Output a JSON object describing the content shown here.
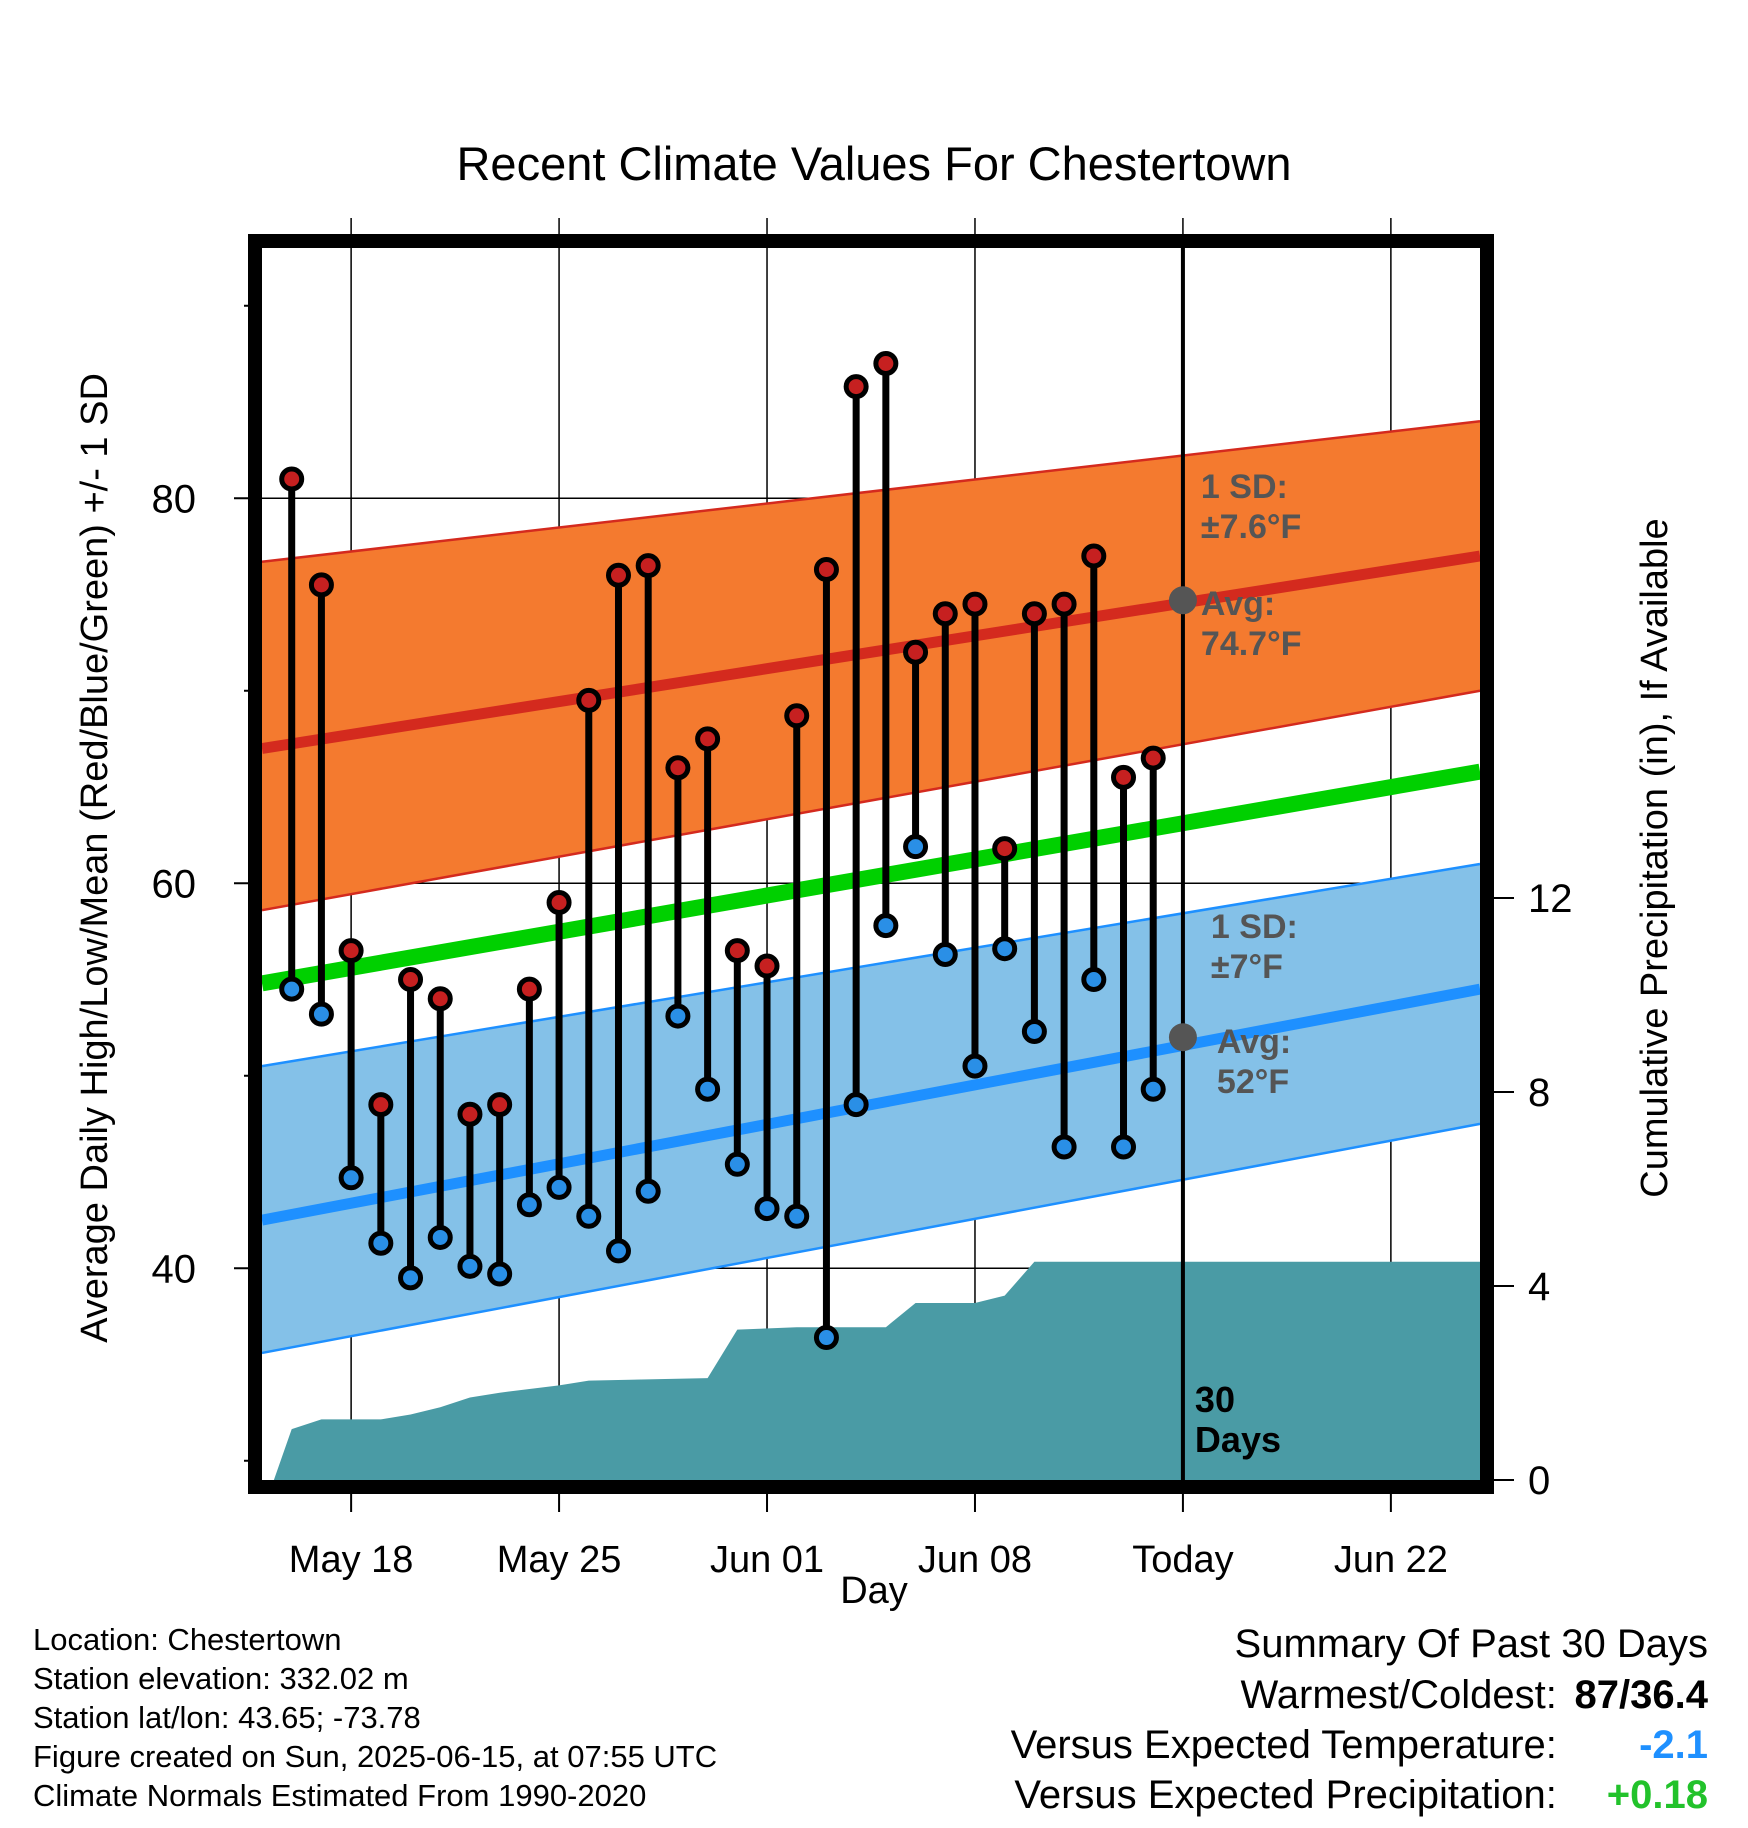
{
  "chart_data": {
    "type": "line",
    "title": "Recent Climate Values For Chestertown",
    "xlabel": "Day",
    "ylabel": "Average Daily High/Low/Mean (Red/Blue/Green) +/- 1 SD",
    "y2label": "Cumulative Precipitation (in), If Available",
    "x_tick_labels": [
      "May 18",
      "May 25",
      "Jun 01",
      "Jun 08",
      "Today",
      "Jun 22"
    ],
    "x_tick_days": [
      3,
      10,
      17,
      24,
      31,
      38
    ],
    "x_range_days": [
      0,
      41
    ],
    "today_day": 31,
    "y_ticks": [
      40,
      60,
      80
    ],
    "ylim": [
      29,
      93
    ],
    "y2_ticks": [
      0,
      4,
      8,
      12
    ],
    "y2lim": [
      0,
      25.4
    ],
    "normals": {
      "high_mean": {
        "start": 67.0,
        "end": 77.0
      },
      "high_sd_upper": {
        "start": 76.7,
        "end": 84.0
      },
      "high_sd_lower": {
        "start": 58.6,
        "end": 70.0
      },
      "low_mean": {
        "start": 42.5,
        "end": 54.5
      },
      "low_sd_upper": {
        "start": 50.5,
        "end": 61.0
      },
      "low_sd_lower": {
        "start": 35.6,
        "end": 47.5
      },
      "mean": {
        "start": 54.8,
        "end": 65.8
      }
    },
    "daily": {
      "days": [
        1,
        2,
        3,
        4,
        5,
        6,
        7,
        8,
        9,
        10,
        11,
        12,
        13,
        14,
        15,
        16,
        17,
        18,
        19,
        20,
        21,
        22,
        23,
        24,
        25,
        26,
        27,
        28,
        29,
        30
      ],
      "high": [
        81,
        75.5,
        56.5,
        48.5,
        55,
        54,
        48,
        48.5,
        54.5,
        59,
        69.5,
        76,
        76.5,
        66,
        67.5,
        56.5,
        55.7,
        68.7,
        76.3,
        85.8,
        87,
        72,
        74,
        74.5,
        61.8,
        74,
        74.5,
        77,
        65.5,
        66.5
      ],
      "low": [
        54.5,
        53.2,
        44.7,
        41.3,
        39.5,
        41.6,
        40.1,
        39.7,
        43.3,
        44.2,
        42.7,
        40.9,
        44,
        53.1,
        49.3,
        45.4,
        43.1,
        42.7,
        36.4,
        48.5,
        57.8,
        61.9,
        56.3,
        50.5,
        56.6,
        52.3,
        46.3,
        55,
        46.3,
        49.3
      ]
    },
    "precip_cumulative": [
      [
        0.4,
        0.0
      ],
      [
        1.0,
        1.05
      ],
      [
        2.0,
        1.25
      ],
      [
        4.0,
        1.25
      ],
      [
        5.0,
        1.35
      ],
      [
        6.0,
        1.5
      ],
      [
        7.0,
        1.7
      ],
      [
        8.0,
        1.8
      ],
      [
        10.0,
        1.95
      ],
      [
        11.0,
        2.05
      ],
      [
        15.0,
        2.1
      ],
      [
        16.0,
        3.1
      ],
      [
        18.0,
        3.15
      ],
      [
        21.0,
        3.15
      ],
      [
        22.0,
        3.65
      ],
      [
        24.0,
        3.65
      ],
      [
        25.0,
        3.8
      ],
      [
        26.0,
        4.5
      ],
      [
        41.0,
        4.5
      ]
    ],
    "annotations": {
      "high_sd": [
        "1 SD:",
        "±7.6°F"
      ],
      "high_avg": [
        "Avg:",
        "74.7°F"
      ],
      "low_sd": [
        "1 SD:",
        "±7°F"
      ],
      "low_avg": [
        "Avg:",
        "52°F"
      ],
      "today_high_avg": 74.7,
      "today_low_avg": 52.0,
      "days_label": [
        "30",
        "Days"
      ]
    },
    "colors": {
      "high_band": "#f47a2f",
      "high_line": "#d42a1e",
      "low_band": "#84c1e8",
      "low_line": "#1e90ff",
      "mean_line": "#00d000",
      "precip": "#4a9ba5",
      "high_dot": "#c62020",
      "low_dot": "#2a8fe6",
      "annotation": "#555555"
    }
  },
  "footer": {
    "location": "Location: Chestertown",
    "elevation": "Station elevation: 332.02 m",
    "latlon": "Station lat/lon: 43.65; -73.78",
    "created": "Figure created on Sun, 2025-06-15, at 07:55 UTC",
    "normals": "Climate Normals Estimated From 1990-2020"
  },
  "summary": {
    "heading": "Summary Of Past 30 Days",
    "warm_cold_label": "Warmest/Coldest:",
    "warm_cold_value": "87/36.4",
    "temp_label": "Versus Expected Temperature:",
    "temp_value": "-2.1",
    "temp_color": "#1e90ff",
    "precip_label": "Versus Expected Precipitation:",
    "precip_value": "+0.18",
    "precip_color": "#22c22b"
  }
}
